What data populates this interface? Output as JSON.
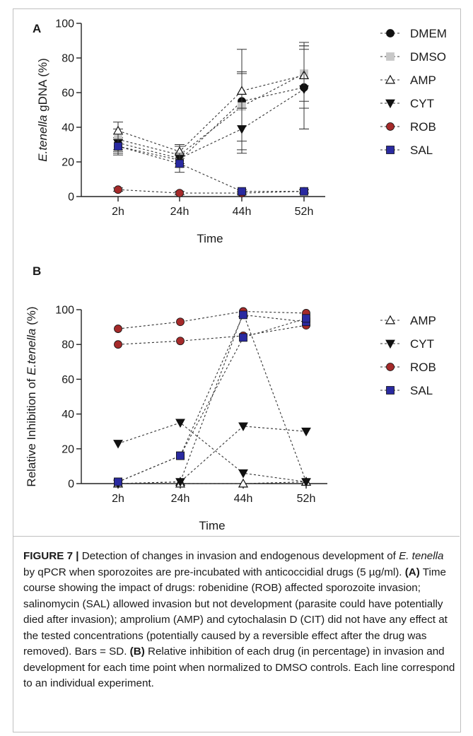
{
  "caption": {
    "label": "FIGURE 7 |",
    "t1": " Detection of changes in invasion and endogenous development of ",
    "species": "E. tenella",
    "t2": " by qPCR when sporozoites are pre-incubated with anticoccidial drugs (5 µg/ml). ",
    "panel_a": "(A)",
    "t3": " Time course showing the impact of drugs: robenidine (ROB) affected sporozoite invasion; salinomycin (SAL) allowed invasion but not development (parasite could have potentially died after invasion); amprolium (AMP) and cytochalasin D (CIT) did not have any effect at the tested concentrations (potentially caused by a reversible effect after the drug was removed). Bars = SD. ",
    "panel_b": "(B)",
    "t4": " Relative inhibition of each drug (in percentage) in invasion and development for each time point when normalized to DMSO controls. Each line correspond to an individual experiment."
  },
  "chart_data": [
    {
      "panel": "A",
      "type": "line",
      "title": "",
      "xlabel": "Time",
      "ylabel_italic": "E.tenella",
      "ylabel_rest": " gDNA (%)",
      "categories": [
        "2h",
        "24h",
        "44h",
        "52h"
      ],
      "ylim": [
        0,
        100
      ],
      "yticks": [
        0,
        20,
        40,
        60,
        80,
        100
      ],
      "grid": false,
      "legend_position": "right",
      "series": [
        {
          "name": "DMEM",
          "marker": "circle",
          "color": "#111111",
          "values": [
            29,
            21,
            55,
            63
          ],
          "sd": [
            5,
            4,
            30,
            24
          ]
        },
        {
          "name": "DMSO",
          "marker": "square",
          "color": "#c8c8c8",
          "values": [
            33,
            24,
            52,
            71
          ],
          "sd": [
            6,
            5,
            20,
            16
          ]
        },
        {
          "name": "AMP",
          "marker": "triangle-open",
          "color": "#111111",
          "values": [
            38,
            26,
            61,
            70
          ],
          "sd": [
            5,
            4,
            10,
            19
          ]
        },
        {
          "name": "CYT",
          "marker": "triangle-down",
          "color": "#111111",
          "values": [
            31,
            22,
            39,
            62
          ],
          "sd": [
            5,
            3,
            12,
            23
          ]
        },
        {
          "name": "ROB",
          "marker": "circle",
          "color": "#a52a2a",
          "values": [
            4,
            2,
            2,
            3
          ],
          "sd": [
            1,
            1,
            1,
            1
          ]
        },
        {
          "name": "SAL",
          "marker": "square",
          "color": "#2a2aa0",
          "values": [
            29,
            19,
            3,
            3
          ],
          "sd": [
            4,
            5,
            1,
            1
          ]
        }
      ]
    },
    {
      "panel": "B",
      "type": "line",
      "title": "",
      "xlabel": "Time",
      "ylabel_pre": "Relative Inhibition of ",
      "ylabel_italic": "E.tenella",
      "ylabel_post": " (%)",
      "categories": [
        "2h",
        "24h",
        "44h",
        "52h"
      ],
      "ylim": [
        0,
        100
      ],
      "yticks": [
        0,
        20,
        40,
        60,
        80,
        100
      ],
      "grid": false,
      "legend_position": "right",
      "legend": [
        {
          "name": "AMP",
          "marker": "triangle-open",
          "color": "#111111"
        },
        {
          "name": "CYT",
          "marker": "triangle-down",
          "color": "#111111"
        },
        {
          "name": "ROB",
          "marker": "circle",
          "color": "#a52a2a"
        },
        {
          "name": "SAL",
          "marker": "square",
          "color": "#2a2aa0"
        }
      ],
      "series": [
        {
          "name": "AMP",
          "experiment": 1,
          "marker": "triangle-open",
          "color": "#111111",
          "values": [
            0,
            1,
            98,
            1
          ]
        },
        {
          "name": "AMP",
          "experiment": 2,
          "marker": "triangle-open",
          "color": "#111111",
          "values": [
            0,
            0,
            0,
            1
          ]
        },
        {
          "name": "CYT",
          "experiment": 1,
          "marker": "triangle-down",
          "color": "#111111",
          "values": [
            23,
            35,
            6,
            1
          ]
        },
        {
          "name": "CYT",
          "experiment": 2,
          "marker": "triangle-down",
          "color": "#111111",
          "values": [
            0,
            1,
            33,
            30
          ]
        },
        {
          "name": "ROB",
          "experiment": 1,
          "marker": "circle",
          "color": "#a52a2a",
          "values": [
            89,
            93,
            99,
            98
          ]
        },
        {
          "name": "ROB",
          "experiment": 2,
          "marker": "circle",
          "color": "#a52a2a",
          "values": [
            80,
            82,
            85,
            91
          ]
        },
        {
          "name": "SAL",
          "experiment": 1,
          "marker": "square",
          "color": "#2a2aa0",
          "values": [
            1,
            16,
            97,
            93
          ]
        },
        {
          "name": "SAL",
          "experiment": 2,
          "marker": "square",
          "color": "#2a2aa0",
          "values": [
            1,
            16,
            84,
            95
          ]
        }
      ]
    }
  ]
}
